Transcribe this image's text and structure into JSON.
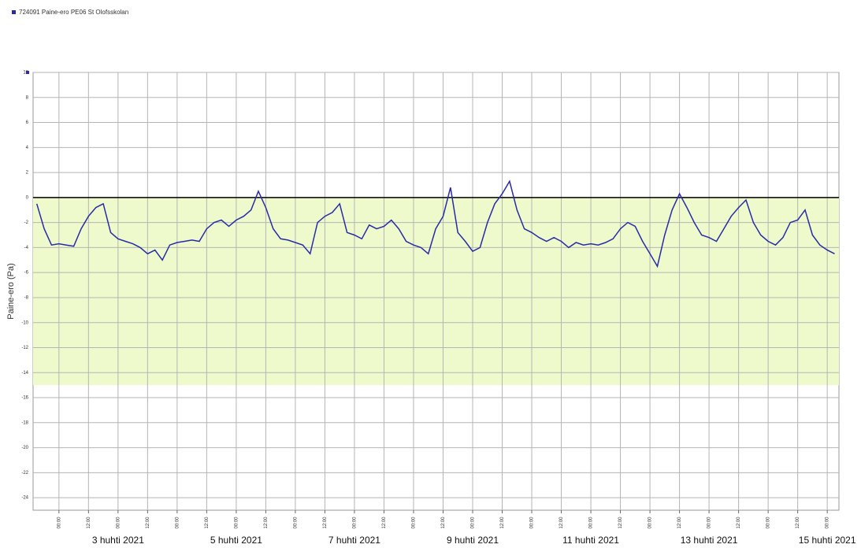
{
  "chart_data": {
    "type": "line",
    "legend": "724091 Paine-ero PE06 St Olofsskolan",
    "ylabel": "Paine-ero (Pa)",
    "ylim": [
      -25,
      10
    ],
    "yticks": [
      10,
      8,
      6,
      4,
      2,
      0,
      -2,
      -4,
      -6,
      -8,
      -10,
      -12,
      -14,
      -16,
      -18,
      -20,
      -22,
      -24
    ],
    "xlim": [
      "2021-04-01 13:30",
      "2021-04-15 04:45"
    ],
    "xticks": [
      {
        "value": "2021-04-02 00:00",
        "label": "00:00"
      },
      {
        "value": "2021-04-02 12:00",
        "label": "12:00"
      },
      {
        "value": "2021-04-03 00:00",
        "label": "00:00"
      },
      {
        "value": "2021-04-03 12:00",
        "label": "12:00"
      },
      {
        "value": "2021-04-04 00:00",
        "label": "00:00"
      },
      {
        "value": "2021-04-04 12:00",
        "label": "12:00"
      },
      {
        "value": "2021-04-05 00:00",
        "label": "00:00"
      },
      {
        "value": "2021-04-05 12:00",
        "label": "12:00"
      },
      {
        "value": "2021-04-06 00:00",
        "label": "00:00"
      },
      {
        "value": "2021-04-06 12:00",
        "label": "12:00"
      },
      {
        "value": "2021-04-07 00:00",
        "label": "00:00"
      },
      {
        "value": "2021-04-07 12:00",
        "label": "12:00"
      },
      {
        "value": "2021-04-08 00:00",
        "label": "00:00"
      },
      {
        "value": "2021-04-08 12:00",
        "label": "12:00"
      },
      {
        "value": "2021-04-09 00:00",
        "label": "00:00"
      },
      {
        "value": "2021-04-09 12:00",
        "label": "12:00"
      },
      {
        "value": "2021-04-10 00:00",
        "label": "00:00"
      },
      {
        "value": "2021-04-10 12:00",
        "label": "12:00"
      },
      {
        "value": "2021-04-11 00:00",
        "label": "00:00"
      },
      {
        "value": "2021-04-11 12:00",
        "label": "12:00"
      },
      {
        "value": "2021-04-12 00:00",
        "label": "00:00"
      },
      {
        "value": "2021-04-12 12:00",
        "label": "12:00"
      },
      {
        "value": "2021-04-13 00:00",
        "label": "00:00"
      },
      {
        "value": "2021-04-13 12:00",
        "label": "12:00"
      },
      {
        "value": "2021-04-14 00:00",
        "label": "00:00"
      },
      {
        "value": "2021-04-14 12:00",
        "label": "12:00"
      },
      {
        "value": "2021-04-15 00:00",
        "label": "00:00"
      }
    ],
    "date_ticks": [
      {
        "value": "2021-04-03 00:00",
        "label": "3 huhti 2021"
      },
      {
        "value": "2021-04-05 00:00",
        "label": "5 huhti 2021"
      },
      {
        "value": "2021-04-07 00:00",
        "label": "7 huhti 2021"
      },
      {
        "value": "2021-04-09 00:00",
        "label": "9 huhti 2021"
      },
      {
        "value": "2021-04-11 00:00",
        "label": "11 huhti 2021"
      },
      {
        "value": "2021-04-13 00:00",
        "label": "13 huhti 2021"
      },
      {
        "value": "2021-04-15 00:00",
        "label": "15 huhti 2021"
      }
    ],
    "grid": true,
    "band": {
      "from": 0,
      "to": -15,
      "color": "#eefacb"
    },
    "reference_line": 0,
    "x": [
      "2021-04-01 15:00",
      "2021-04-01 18:00",
      "2021-04-01 21:00",
      "2021-04-02 00:00",
      "2021-04-02 03:00",
      "2021-04-02 06:00",
      "2021-04-02 09:00",
      "2021-04-02 12:00",
      "2021-04-02 15:00",
      "2021-04-02 18:00",
      "2021-04-02 21:00",
      "2021-04-03 00:00",
      "2021-04-03 03:00",
      "2021-04-03 06:00",
      "2021-04-03 09:00",
      "2021-04-03 12:00",
      "2021-04-03 15:00",
      "2021-04-03 18:00",
      "2021-04-03 21:00",
      "2021-04-04 00:00",
      "2021-04-04 03:00",
      "2021-04-04 06:00",
      "2021-04-04 09:00",
      "2021-04-04 12:00",
      "2021-04-04 15:00",
      "2021-04-04 18:00",
      "2021-04-04 21:00",
      "2021-04-05 00:00",
      "2021-04-05 03:00",
      "2021-04-05 06:00",
      "2021-04-05 09:00",
      "2021-04-05 12:00",
      "2021-04-05 15:00",
      "2021-04-05 18:00",
      "2021-04-05 21:00",
      "2021-04-06 00:00",
      "2021-04-06 03:00",
      "2021-04-06 06:00",
      "2021-04-06 09:00",
      "2021-04-06 12:00",
      "2021-04-06 15:00",
      "2021-04-06 18:00",
      "2021-04-06 21:00",
      "2021-04-07 00:00",
      "2021-04-07 03:00",
      "2021-04-07 06:00",
      "2021-04-07 09:00",
      "2021-04-07 12:00",
      "2021-04-07 15:00",
      "2021-04-07 18:00",
      "2021-04-07 21:00",
      "2021-04-08 00:00",
      "2021-04-08 03:00",
      "2021-04-08 06:00",
      "2021-04-08 09:00",
      "2021-04-08 12:00",
      "2021-04-08 15:00",
      "2021-04-08 18:00",
      "2021-04-08 21:00",
      "2021-04-09 00:00",
      "2021-04-09 03:00",
      "2021-04-09 06:00",
      "2021-04-09 09:00",
      "2021-04-09 12:00",
      "2021-04-09 15:00",
      "2021-04-09 18:00",
      "2021-04-09 21:00",
      "2021-04-10 00:00",
      "2021-04-10 03:00",
      "2021-04-10 06:00",
      "2021-04-10 09:00",
      "2021-04-10 12:00",
      "2021-04-10 15:00",
      "2021-04-10 18:00",
      "2021-04-10 21:00",
      "2021-04-11 00:00",
      "2021-04-11 03:00",
      "2021-04-11 06:00",
      "2021-04-11 09:00",
      "2021-04-11 12:00",
      "2021-04-11 15:00",
      "2021-04-11 18:00",
      "2021-04-11 21:00",
      "2021-04-12 00:00",
      "2021-04-12 03:00",
      "2021-04-12 06:00",
      "2021-04-12 09:00",
      "2021-04-12 12:00",
      "2021-04-12 15:00",
      "2021-04-12 18:00",
      "2021-04-12 21:00",
      "2021-04-13 00:00",
      "2021-04-13 03:00",
      "2021-04-13 06:00",
      "2021-04-13 09:00",
      "2021-04-13 12:00",
      "2021-04-13 15:00",
      "2021-04-13 18:00",
      "2021-04-13 21:00",
      "2021-04-14 00:00",
      "2021-04-14 03:00",
      "2021-04-14 06:00",
      "2021-04-14 09:00",
      "2021-04-14 12:00",
      "2021-04-14 15:00",
      "2021-04-14 18:00",
      "2021-04-14 21:00",
      "2021-04-15 00:00",
      "2021-04-15 03:00"
    ],
    "series": [
      {
        "name": "724091 Paine-ero PE06 St Olofsskolan",
        "color": "#2a2aa8",
        "values": [
          -0.5,
          -2.5,
          -3.8,
          -3.7,
          -3.8,
          -3.9,
          -2.5,
          -1.5,
          -0.8,
          -0.5,
          -2.8,
          -3.3,
          -3.5,
          -3.7,
          -4.0,
          -4.5,
          -4.2,
          -5.0,
          -3.8,
          -3.6,
          -3.5,
          -3.4,
          -3.5,
          -2.5,
          -2.0,
          -1.8,
          -2.3,
          -1.8,
          -1.5,
          -1.0,
          0.5,
          -0.8,
          -2.5,
          -3.3,
          -3.4,
          -3.6,
          -3.8,
          -4.5,
          -2.0,
          -1.5,
          -1.2,
          -0.5,
          -2.8,
          -3.0,
          -3.3,
          -2.2,
          -2.5,
          -2.3,
          -1.8,
          -2.5,
          -3.5,
          -3.8,
          -4.0,
          -4.5,
          -2.5,
          -1.5,
          0.8,
          -2.8,
          -3.5,
          -4.3,
          -4.0,
          -2.0,
          -0.5,
          0.3,
          1.3,
          -1.0,
          -2.5,
          -2.8,
          -3.2,
          -3.5,
          -3.2,
          -3.5,
          -4.0,
          -3.6,
          -3.8,
          -3.7,
          -3.8,
          -3.6,
          -3.3,
          -2.5,
          -2.0,
          -2.3,
          -3.5,
          -4.5,
          -5.5,
          -3.0,
          -1.0,
          0.3,
          -0.8,
          -2.0,
          -3.0,
          -3.2,
          -3.5,
          -2.5,
          -1.5,
          -0.8,
          -0.2,
          -2.0,
          -3.0,
          -3.5,
          -3.8,
          -3.2,
          -2.0,
          -1.8,
          -1.0,
          -3.0,
          -3.8,
          -4.2,
          -4.5
        ]
      }
    ]
  }
}
